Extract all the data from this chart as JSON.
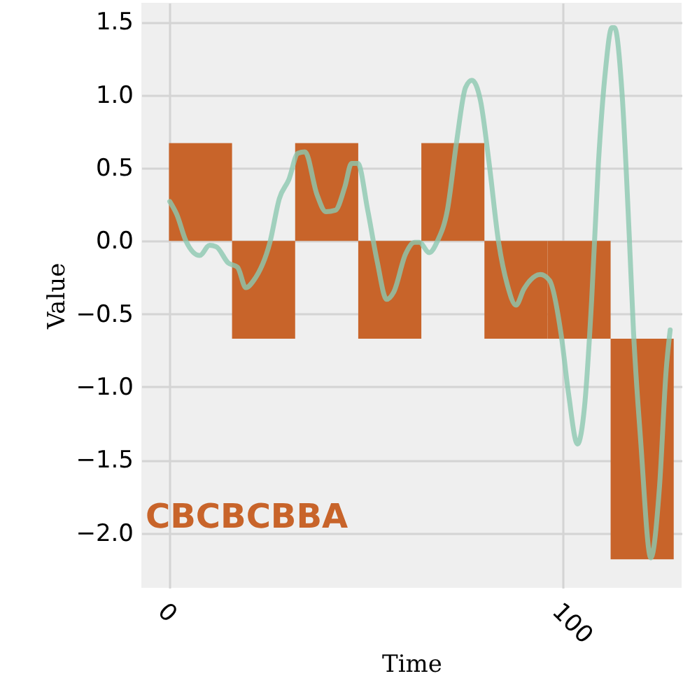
{
  "chart_data": {
    "type": "bar",
    "xlabel": "Time",
    "ylabel": "Value",
    "xlim": [
      -7,
      130
    ],
    "xticks": [
      0,
      100
    ],
    "ylim": [
      -2.375,
      1.63
    ],
    "yticks": [
      {
        "value": -2.0,
        "label": "−2.0"
      },
      {
        "value": -1.5,
        "label": "−1.5"
      },
      {
        "value": -1.0,
        "label": "−1.0"
      },
      {
        "value": -0.5,
        "label": "−0.5"
      },
      {
        "value": 0.0,
        "label": "0.0"
      },
      {
        "value": 0.5,
        "label": "0.5"
      },
      {
        "value": 1.0,
        "label": "1.0"
      },
      {
        "value": 1.5,
        "label": "1.5"
      }
    ],
    "grid": true,
    "annotations": [
      "CBCBCBBA"
    ],
    "series": [
      {
        "color": "#c8642a",
        "x": [
          8,
          24,
          40,
          56,
          72,
          88,
          104,
          120
        ],
        "base": [
          0,
          -0.67,
          0,
          -0.67,
          0,
          -0.67,
          -0.67,
          -0.67
        ],
        "values": [
          0.67,
          0.67,
          0.67,
          0.67,
          0.67,
          0.67,
          0.67,
          -1.51
        ]
      },
      {
        "type": "line",
        "color": "#8cc8b0",
        "x": [
          0.2,
          2,
          4.3,
          7.8,
          10.3,
          12,
          15,
          17.4,
          19.5,
          21.5,
          25.6,
          28,
          30.4,
          32.7,
          34.5,
          37.5,
          39.8,
          42.2,
          44.6,
          46.3,
          47.9,
          50.4,
          52.8,
          55.2,
          57,
          60,
          62.3,
          63.5,
          66,
          68.1,
          70.6,
          73,
          75.2,
          76.8,
          79,
          81.2,
          83.6,
          85.8,
          88,
          90,
          94.2,
          96.5,
          99.5,
          101.3,
          103.6,
          105.4,
          107.2,
          108.9,
          110.7,
          112.3,
          113,
          114.9,
          116.7,
          117.8,
          119.6,
          122.2,
          124.4,
          126.1,
          127.1
        ],
        "values": [
          0.27,
          0.18,
          0.0,
          -0.1,
          -0.03,
          -0.04,
          -0.15,
          -0.18,
          -0.32,
          -0.27,
          -0.01,
          0.29,
          0.42,
          0.6,
          0.61,
          0.32,
          0.2,
          0.21,
          0.37,
          0.53,
          0.53,
          0.21,
          -0.14,
          -0.4,
          -0.35,
          -0.09,
          -0.01,
          -0.01,
          -0.08,
          0.0,
          0.21,
          0.69,
          1.05,
          1.1,
          0.96,
          0.53,
          -0.01,
          -0.3,
          -0.44,
          -0.33,
          -0.23,
          -0.27,
          -0.65,
          -1.04,
          -1.39,
          -1.13,
          -0.4,
          0.53,
          1.17,
          1.46,
          1.46,
          1.01,
          0.05,
          -0.62,
          -1.36,
          -2.17,
          -1.68,
          -0.88,
          -0.61
        ]
      }
    ]
  }
}
